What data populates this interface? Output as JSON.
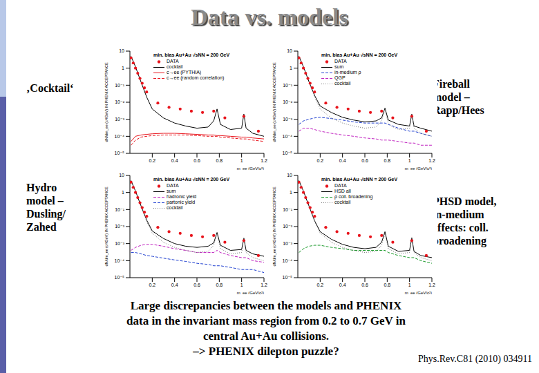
{
  "slide": {
    "title": "Data vs. models",
    "labels": [
      [
        "‚Cocktail‘"
      ],
      [
        "Fireball",
        "model –",
        "Rapp/Hees"
      ],
      [
        "Hydro",
        "model –",
        "Dusling/",
        "Zahed"
      ],
      [
        "PHSD model,",
        "in-medium",
        "effects: coll.",
        "broadening"
      ]
    ],
    "conclusion": [
      "Large discrepancies between the models and PHENIX",
      "data in the invariant mass region from 0.2 to 0.7 GeV in",
      "central Au+Au collisions.",
      "–> PHENIX dilepton puzzle?"
    ],
    "reference": "Phys.Rev.C81 (2010) 034911"
  },
  "chart_data": [
    {
      "type": "line",
      "title": "min. bias Au+Au √sNN = 200 GeV",
      "x_label": "m_ee (GeV/c²)",
      "y_label": "dN/dm_ee (c²/GeV) IN PHENIX ACCEPTANCE",
      "log": "y",
      "xlim": [
        0,
        1.2
      ],
      "xticks": [
        0.2,
        0.4,
        0.6,
        0.8,
        1,
        1.2
      ],
      "ylim": [
        1e-05,
        10
      ],
      "yticks": [
        {
          "value": 1e-05,
          "label": "10⁻⁵"
        },
        {
          "value": 0.0001,
          "label": "10⁻⁴"
        },
        {
          "value": 0.001,
          "label": "10⁻³"
        },
        {
          "value": 0.01,
          "label": "10⁻²"
        },
        {
          "value": 0.1,
          "label": "10⁻¹"
        },
        1,
        10
      ],
      "x": [
        0.01,
        0.05,
        0.1,
        0.15,
        0.2,
        0.3,
        0.4,
        0.5,
        0.6,
        0.7,
        0.75,
        0.78,
        0.81,
        0.9,
        1.0,
        1.02,
        1.04,
        1.1,
        1.2
      ],
      "series": [
        {
          "name": "DATA",
          "type": "scatter",
          "color": "#e8141c",
          "marker": "circle",
          "x": [
            0.01,
            0.03,
            0.05,
            0.07,
            0.09,
            0.11,
            0.13,
            0.15,
            0.25,
            0.35,
            0.45,
            0.55,
            0.65,
            0.75,
            0.85,
            1.02,
            1.15
          ],
          "values": [
            4,
            2,
            1,
            0.5,
            0.25,
            0.13,
            0.07,
            0.04,
            0.009,
            0.005,
            0.004,
            0.003,
            0.0025,
            0.003,
            0.0012,
            0.0015,
            0.0002
          ]
        },
        {
          "name": "cocktail",
          "color": "#000000",
          "line_style": "solid",
          "values": [
            5,
            1.2,
            0.15,
            0.02,
            0.004,
            0.0012,
            0.0006,
            0.0004,
            0.0003,
            0.00035,
            0.0008,
            0.004,
            0.0005,
            0.00025,
            0.0003,
            0.002,
            0.0003,
            0.00015,
            0.0001
          ]
        },
        {
          "name": "c→ee (PYTHIA)",
          "color": "#e8141c",
          "line_style": "solid",
          "values": [
            5e-05,
            0.0001,
            0.00012,
            0.00013,
            0.00014,
            0.00015,
            0.00015,
            0.00014,
            0.00013,
            0.00012,
            0.00012,
            0.00011,
            0.00011,
            0.0001,
            9e-05,
            9e-05,
            9e-05,
            8e-05,
            7e-05
          ]
        },
        {
          "name": "c→ee (random correlation)",
          "color": "#e8141c",
          "line_style": "dashed",
          "values": [
            3e-05,
            6e-05,
            9e-05,
            0.0001,
            0.00011,
            0.00012,
            0.00012,
            0.00012,
            0.00011,
            0.0001,
            0.0001,
            0.0001,
            9e-05,
            8e-05,
            7e-05,
            7e-05,
            7e-05,
            6e-05,
            5e-05
          ]
        }
      ]
    },
    {
      "type": "line",
      "title": "min. bias Au+Au √sNN = 200 GeV",
      "x_label": "m_ee (GeV/c²)",
      "y_label": "dN/dm_ee (c²/GeV) IN PHENIX ACCEPTANCE",
      "log": "y",
      "xlim": [
        0,
        1.2
      ],
      "xticks": [
        0.2,
        0.4,
        0.6,
        0.8,
        1,
        1.2
      ],
      "ylim": [
        1e-05,
        10
      ],
      "yticks": [
        {
          "value": 1e-05,
          "label": "10⁻⁵"
        },
        {
          "value": 0.0001,
          "label": "10⁻⁴"
        },
        {
          "value": 0.001,
          "label": "10⁻³"
        },
        {
          "value": 0.01,
          "label": "10⁻²"
        },
        {
          "value": 0.1,
          "label": "10⁻¹"
        },
        1,
        10
      ],
      "x": [
        0.01,
        0.05,
        0.1,
        0.15,
        0.2,
        0.3,
        0.4,
        0.5,
        0.6,
        0.7,
        0.75,
        0.78,
        0.81,
        0.9,
        1.0,
        1.02,
        1.04,
        1.1,
        1.2
      ],
      "series": [
        {
          "name": "DATA",
          "type": "scatter",
          "color": "#e8141c",
          "marker": "circle",
          "x": [
            0.01,
            0.03,
            0.05,
            0.07,
            0.09,
            0.11,
            0.13,
            0.15,
            0.25,
            0.35,
            0.45,
            0.55,
            0.65,
            0.75,
            0.85,
            1.02,
            1.15
          ],
          "values": [
            4,
            2,
            1,
            0.5,
            0.25,
            0.13,
            0.07,
            0.04,
            0.009,
            0.005,
            0.004,
            0.003,
            0.0025,
            0.003,
            0.0012,
            0.0015,
            0.0002
          ]
        },
        {
          "name": "sum",
          "color": "#000000",
          "line_style": "solid",
          "values": [
            5,
            1.2,
            0.16,
            0.025,
            0.006,
            0.0025,
            0.0013,
            0.0009,
            0.0007,
            0.0008,
            0.0012,
            0.0045,
            0.0009,
            0.0005,
            0.0004,
            0.002,
            0.0004,
            0.0003,
            0.0002
          ]
        },
        {
          "name": "in-medium ρ",
          "color": "#1f3fd0",
          "line_style": "dashed",
          "values": [
            0.0005,
            0.0008,
            0.001,
            0.0012,
            0.0013,
            0.0011,
            0.0009,
            0.0007,
            0.0006,
            0.0006,
            0.0006,
            0.0006,
            0.0005,
            0.0003,
            0.0002,
            0.0002,
            0.0002,
            0.00015,
            0.0001
          ]
        },
        {
          "name": "QGP",
          "color": "#c020c0",
          "line_style": "dashed",
          "values": [
            0.0002,
            0.0003,
            0.0003,
            0.00025,
            0.0002,
            0.00015,
            0.00012,
            0.0001,
            8e-05,
            7e-05,
            6e-05,
            6e-05,
            6e-05,
            5e-05,
            4e-05,
            4e-05,
            4e-05,
            3e-05,
            3e-05
          ]
        },
        {
          "name": "cocktail",
          "color": "#777777",
          "line_style": "dotted",
          "values": [
            5,
            1.2,
            0.15,
            0.02,
            0.004,
            0.0012,
            0.0006,
            0.0004,
            0.0003,
            0.00035,
            0.0008,
            0.004,
            0.0005,
            0.00025,
            0.0003,
            0.002,
            0.0003,
            0.00015,
            0.0001
          ]
        }
      ]
    },
    {
      "type": "line",
      "title": "min. bias Au+Au √sNN = 200 GeV",
      "x_label": "m_ee (GeV/c²)",
      "y_label": "dN/dm_ee (c²/GeV) IN PHENIX ACCEPTANCE",
      "log": "y",
      "xlim": [
        0,
        1.2
      ],
      "xticks": [
        0.2,
        0.4,
        0.6,
        0.8,
        1,
        1.2
      ],
      "ylim": [
        1e-05,
        10
      ],
      "yticks": [
        {
          "value": 1e-05,
          "label": "10⁻⁵"
        },
        {
          "value": 0.0001,
          "label": "10⁻⁴"
        },
        {
          "value": 0.001,
          "label": "10⁻³"
        },
        {
          "value": 0.01,
          "label": "10⁻²"
        },
        {
          "value": 0.1,
          "label": "10⁻¹"
        },
        1,
        10
      ],
      "x": [
        0.01,
        0.05,
        0.1,
        0.15,
        0.2,
        0.3,
        0.4,
        0.5,
        0.6,
        0.7,
        0.75,
        0.78,
        0.81,
        0.9,
        1.0,
        1.02,
        1.04,
        1.1,
        1.2
      ],
      "series": [
        {
          "name": "DATA",
          "type": "scatter",
          "color": "#e8141c",
          "marker": "circle",
          "x": [
            0.01,
            0.03,
            0.05,
            0.07,
            0.09,
            0.11,
            0.13,
            0.15,
            0.25,
            0.35,
            0.45,
            0.55,
            0.65,
            0.75,
            0.85,
            1.02,
            1.15
          ],
          "values": [
            4,
            2,
            1,
            0.5,
            0.25,
            0.13,
            0.07,
            0.04,
            0.009,
            0.005,
            0.004,
            0.003,
            0.0025,
            0.003,
            0.0012,
            0.0015,
            0.0002
          ]
        },
        {
          "name": "sum",
          "color": "#000000",
          "line_style": "solid",
          "values": [
            5,
            1.2,
            0.16,
            0.024,
            0.0055,
            0.002,
            0.001,
            0.0007,
            0.0006,
            0.0007,
            0.0011,
            0.0045,
            0.0008,
            0.0004,
            0.00045,
            0.0021,
            0.0004,
            0.00025,
            0.00018
          ]
        },
        {
          "name": "hadronic yield",
          "color": "#c020c0",
          "line_style": "dashed",
          "values": [
            0.0004,
            0.0006,
            0.0008,
            0.0009,
            0.0009,
            0.0007,
            0.0005,
            0.0004,
            0.0003,
            0.0003,
            0.0003,
            0.0004,
            0.0003,
            0.0002,
            0.00015,
            0.00015,
            0.00015,
            0.0001,
            8e-05
          ]
        },
        {
          "name": "partonic yield",
          "color": "#1f3fd0",
          "line_style": "dashed",
          "values": [
            0.0003,
            0.0003,
            0.00025,
            0.0002,
            0.00018,
            0.00014,
            0.00011,
            9e-05,
            7e-05,
            6e-05,
            5e-05,
            5e-05,
            5e-05,
            4e-05,
            3e-05,
            3e-05,
            3e-05,
            3e-05,
            2e-05
          ]
        },
        {
          "name": "cocktail",
          "color": "#777777",
          "line_style": "dotted",
          "values": [
            5,
            1.2,
            0.15,
            0.02,
            0.004,
            0.0012,
            0.0006,
            0.0004,
            0.0003,
            0.00035,
            0.0008,
            0.004,
            0.0005,
            0.00025,
            0.0003,
            0.002,
            0.0003,
            0.00015,
            0.0001
          ]
        }
      ]
    },
    {
      "type": "line",
      "title": "min. bias Au+Au √sNN = 200 GeV",
      "x_label": "m_ee (GeV/c²)",
      "y_label": "dN/dm_ee (c²/GeV) IN PHENIX ACCEPTANCE",
      "log": "y",
      "xlim": [
        0,
        1.2
      ],
      "xticks": [
        0.2,
        0.4,
        0.6,
        0.8,
        1,
        1.2
      ],
      "ylim": [
        1e-05,
        10
      ],
      "yticks": [
        {
          "value": 1e-05,
          "label": "10⁻⁵"
        },
        {
          "value": 0.0001,
          "label": "10⁻⁴"
        },
        {
          "value": 0.001,
          "label": "10⁻³"
        },
        {
          "value": 0.01,
          "label": "10⁻²"
        },
        {
          "value": 0.1,
          "label": "10⁻¹"
        },
        1,
        10
      ],
      "x": [
        0.01,
        0.05,
        0.1,
        0.15,
        0.2,
        0.3,
        0.4,
        0.5,
        0.6,
        0.7,
        0.75,
        0.78,
        0.81,
        0.9,
        1.0,
        1.02,
        1.04,
        1.1,
        1.2
      ],
      "series": [
        {
          "name": "DATA",
          "type": "scatter",
          "color": "#e8141c",
          "marker": "circle",
          "x": [
            0.01,
            0.03,
            0.05,
            0.07,
            0.09,
            0.11,
            0.13,
            0.15,
            0.25,
            0.35,
            0.45,
            0.55,
            0.65,
            0.75,
            0.85,
            1.02,
            1.15
          ],
          "values": [
            4,
            2,
            1,
            0.5,
            0.25,
            0.13,
            0.07,
            0.04,
            0.009,
            0.005,
            0.004,
            0.003,
            0.0025,
            0.003,
            0.0012,
            0.0015,
            0.0002
          ]
        },
        {
          "name": "HSD all",
          "color": "#000000",
          "line_style": "solid",
          "values": [
            5,
            1.2,
            0.16,
            0.022,
            0.005,
            0.0018,
            0.0009,
            0.0006,
            0.0005,
            0.0006,
            0.0012,
            0.005,
            0.0007,
            0.00035,
            0.0004,
            0.0022,
            0.00035,
            0.0002,
            0.00015
          ]
        },
        {
          "name": "ρ coll. broadening",
          "color": "#1a9a2a",
          "line_style": "dashed",
          "values": [
            0.0003,
            0.0005,
            0.0007,
            0.0008,
            0.0008,
            0.0006,
            0.0005,
            0.0004,
            0.0004,
            0.0004,
            0.0004,
            0.0004,
            0.0003,
            0.0002,
            0.00015,
            0.00015,
            0.00015,
            0.0001,
            7e-05
          ]
        },
        {
          "name": "cocktail",
          "color": "#777777",
          "line_style": "dotted",
          "values": [
            5,
            1.2,
            0.15,
            0.02,
            0.004,
            0.0012,
            0.0006,
            0.0004,
            0.0003,
            0.00035,
            0.0008,
            0.004,
            0.0005,
            0.00025,
            0.0003,
            0.002,
            0.0003,
            0.00015,
            0.0001
          ]
        }
      ]
    }
  ]
}
